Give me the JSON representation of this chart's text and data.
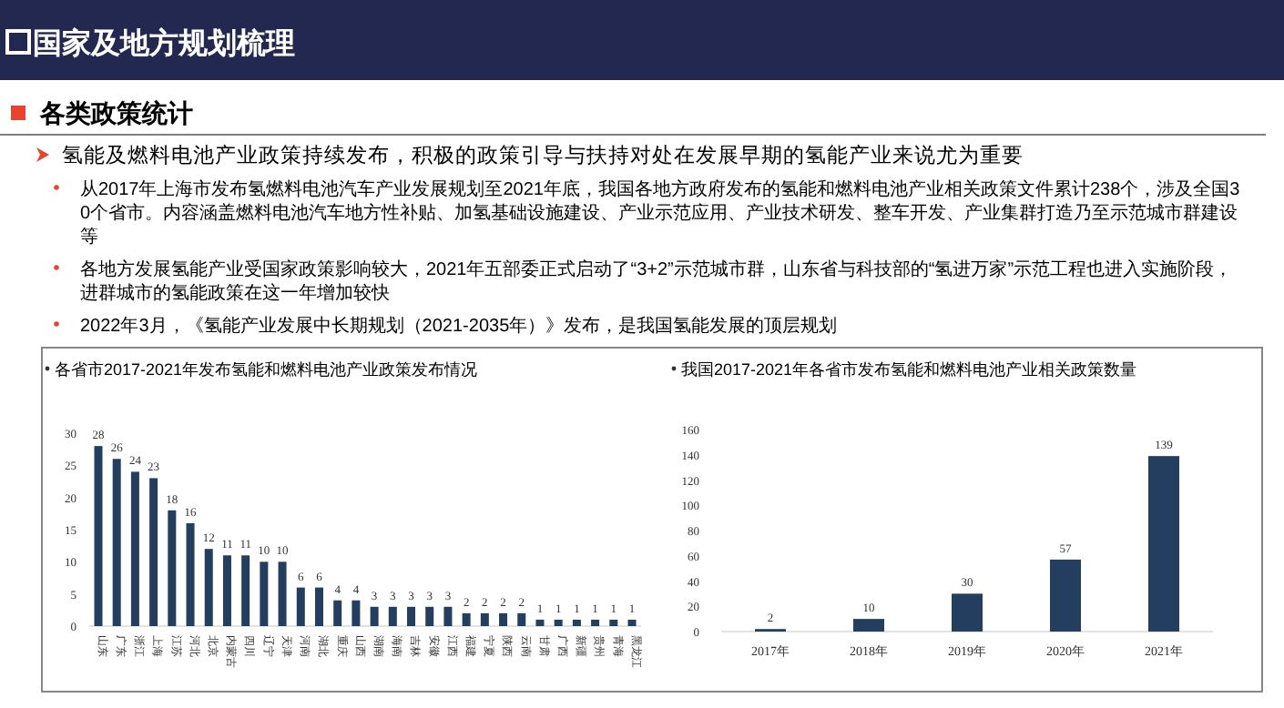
{
  "chart_data": [
    {
      "type": "bar",
      "title": "各省市2017-2021年发布氢能和燃料电池产业政策发布情况",
      "annotations": [
        "国家及地方规划梳理",
        "各类政策统计",
        "氢能及燃料电池产业政策持续发布，积极的政策引导与扶持对处在发展早期的氢能产业来说尤为重要",
        "从2017年上海市发布氢燃料电池汽车产业发展规划至2021年底，我国各地方政府发布的氢能和燃料电池产业相关政策文件累计238个，涉及全国30个省市。内容涵盖燃料电池汽车地方性补贴、加氢基础设施建设、产业示范应用、产业技术研发、整车开发、产业集群打造乃至示范城市群建设等",
        "各地方发展氢能产业受国家政策影响较大，2021年五部委正式启动了“3+2”示范城市群，山东省与科技部的“氢进万家”示范工程也进入实施阶段，进群城市的氢能政策在这一年增加较快",
        "2022年3月，《氢能产业发展中长期规划（2021-2035年）》发布，是我国氢能发展的顶层规划"
      ],
      "categories": [
        "山东",
        "广东",
        "浙江",
        "上海",
        "江苏",
        "河北",
        "北京",
        "内蒙古",
        "四川",
        "辽宁",
        "天津",
        "河南",
        "湖北",
        "重庆",
        "山西",
        "湖南",
        "海南",
        "吉林",
        "安徽",
        "江西",
        "福建",
        "宁夏",
        "陕西",
        "云南",
        "甘肃",
        "广西",
        "新疆",
        "贵州",
        "青海",
        "黑龙江"
      ],
      "values": [
        28,
        26,
        24,
        23,
        18,
        16,
        12,
        11,
        11,
        10,
        10,
        6,
        6,
        4,
        4,
        3,
        3,
        3,
        3,
        3,
        2,
        2,
        2,
        2,
        1,
        1,
        1,
        1,
        1,
        1
      ],
      "color": "#243e5f",
      "ylim": [
        0,
        30
      ],
      "yticks": [
        0,
        5,
        10,
        15,
        20,
        25,
        30
      ],
      "data_labels": true
    },
    {
      "type": "bar",
      "title": "我国2017-2021年各省市发布氢能和燃料电池产业相关政策数量",
      "categories": [
        "2017年",
        "2018年",
        "2019年",
        "2020年",
        "2021年"
      ],
      "values": [
        2,
        10,
        30,
        57,
        139
      ],
      "color": "#243e5f",
      "ylim": [
        0,
        160
      ],
      "yticks": [
        0,
        20,
        40,
        60,
        80,
        100,
        120,
        140,
        160
      ],
      "data_labels": true
    }
  ]
}
